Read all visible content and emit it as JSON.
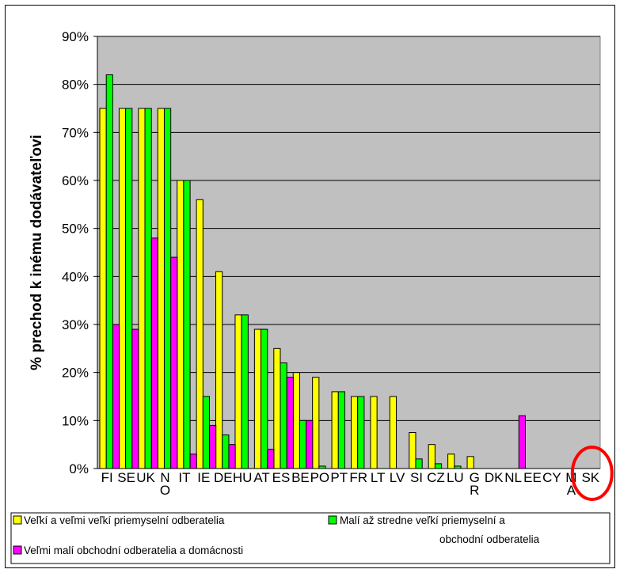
{
  "chart_data": {
    "type": "bar",
    "ylabel": "% prechod k inému dodávateľovi",
    "ylim": [
      0,
      90
    ],
    "yticks": [
      "0%",
      "10%",
      "20%",
      "30%",
      "40%",
      "50%",
      "60%",
      "70%",
      "80%",
      "90%"
    ],
    "grid": true,
    "legend_position": "bottom",
    "categories": [
      "FI",
      "SE",
      "UK",
      "NO",
      "IT",
      "IE",
      "DE",
      "HU",
      "AT",
      "ES",
      "BE",
      "PO",
      "PT",
      "FR",
      "LT",
      "LV",
      "SI",
      "CZ",
      "LU",
      "GR",
      "DK",
      "NL",
      "EE",
      "CY",
      "MA",
      "SK"
    ],
    "category_label_lines": [
      [
        "FI"
      ],
      [
        "SE"
      ],
      [
        "UK"
      ],
      [
        "N",
        "O"
      ],
      [
        "IT"
      ],
      [
        "IE"
      ],
      [
        "DE"
      ],
      [
        "HU"
      ],
      [
        "AT"
      ],
      [
        "ES"
      ],
      [
        "BE"
      ],
      [
        "PO"
      ],
      [
        "PT"
      ],
      [
        "FR"
      ],
      [
        "LT"
      ],
      [
        "LV"
      ],
      [
        "SI"
      ],
      [
        "CZ"
      ],
      [
        "LU"
      ],
      [
        "G",
        "R"
      ],
      [
        "DK"
      ],
      [
        "NL"
      ],
      [
        "EE"
      ],
      [
        "CY"
      ],
      [
        "M",
        "A"
      ],
      [
        "SK"
      ]
    ],
    "series": [
      {
        "name": "Veľkí a veľmi veľkí priemyselní odberatelia",
        "color": "#ffff00",
        "values": [
          75,
          75,
          75,
          75,
          60,
          56,
          41,
          32,
          29,
          25,
          20,
          19,
          16,
          15,
          15,
          15,
          7.5,
          5,
          3,
          2.5,
          0,
          0,
          0,
          0,
          0,
          0
        ]
      },
      {
        "name": "Malí až stredne veľkí priemyselní a obchodní odberatelia",
        "color": "#00ff00",
        "values": [
          82,
          75,
          75,
          75,
          60,
          15,
          7,
          32,
          29,
          22,
          10,
          0.5,
          16,
          15,
          0,
          0,
          2,
          1,
          0.5,
          0,
          0,
          0,
          0,
          0,
          0,
          0
        ]
      },
      {
        "name": "Veľmi malí obchodní odberatelia a domácnosti",
        "color": "#ff00ff",
        "values": [
          30,
          29,
          48,
          44,
          3,
          9,
          5,
          0,
          4,
          19,
          10,
          0,
          0,
          0,
          0,
          0,
          0,
          0,
          0,
          0,
          0,
          11,
          0,
          0,
          0,
          0
        ]
      }
    ],
    "legend_lines": [
      {
        "text": "Veľkí a veľmi veľkí priemyselní odberatelia",
        "color": "#ffff00"
      },
      {
        "text": "Malí až stredne veľkí priemyselní a",
        "color": "#00ff00"
      },
      {
        "text": "obchodní odberatelia",
        "color": null
      },
      {
        "text": "Veľmi malí obchodní odberatelia a domácnosti",
        "color": "#ff00ff"
      }
    ],
    "highlight": {
      "category": "SK",
      "shape": "circle",
      "color": "#ff0000"
    }
  }
}
